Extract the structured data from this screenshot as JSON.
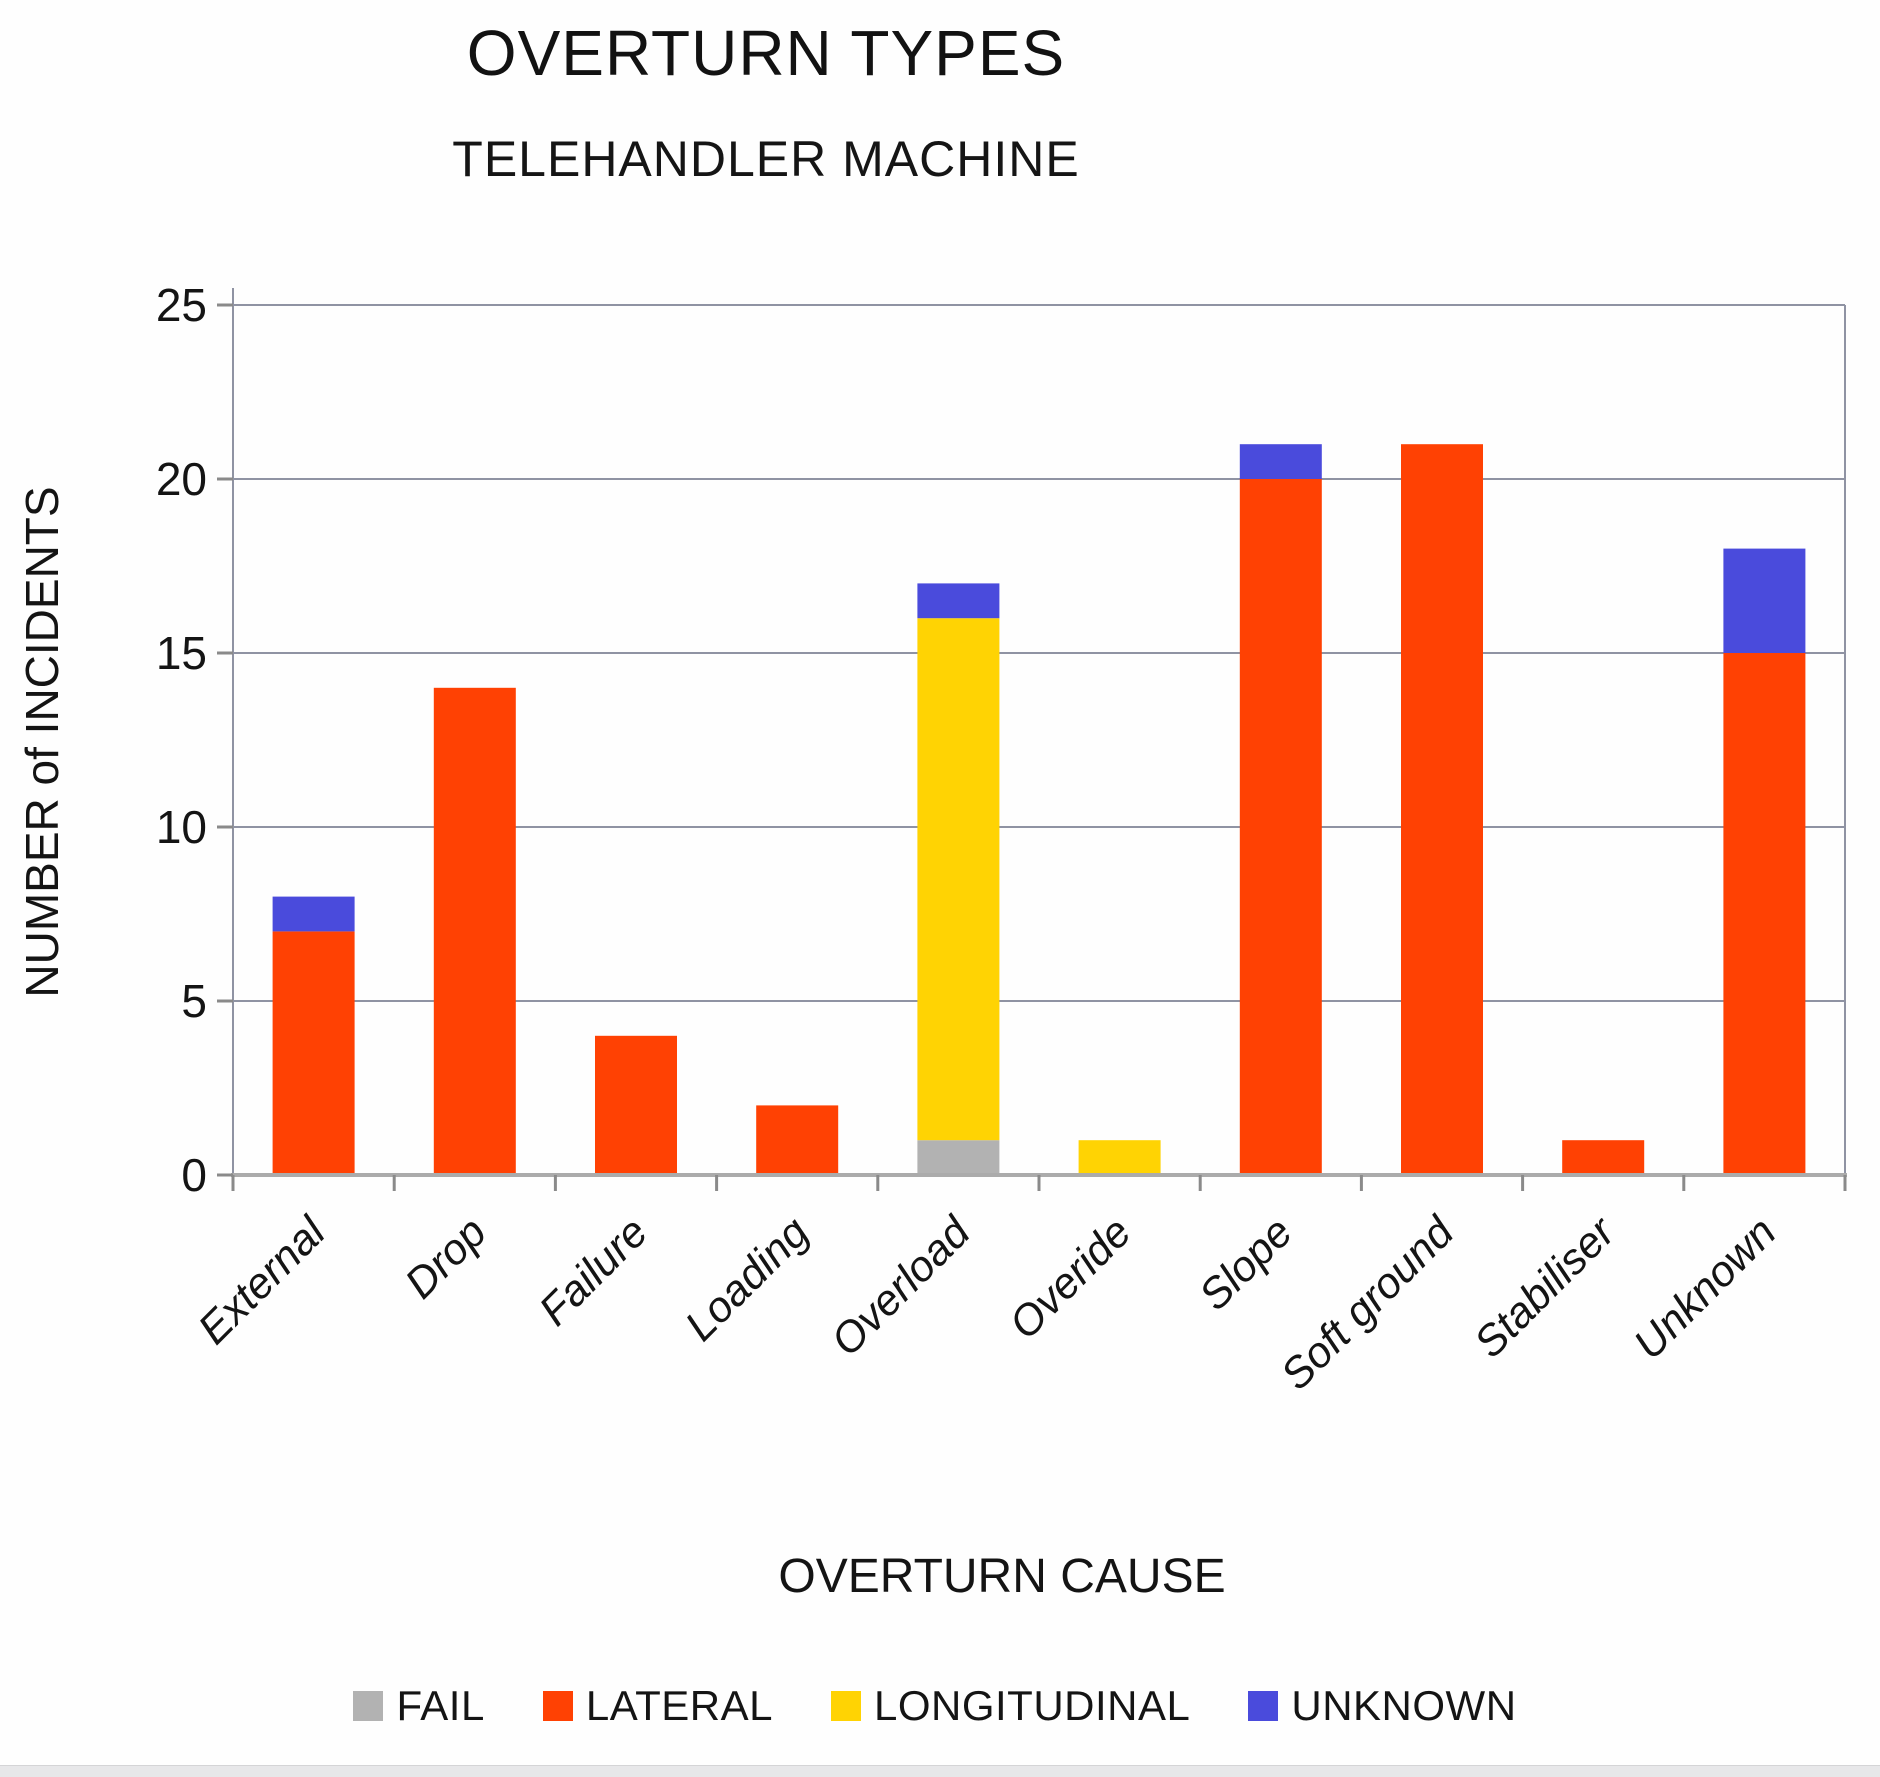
{
  "title": "OVERTURN TYPES",
  "subtitle": "TELEHANDLER MACHINE",
  "chart_data": {
    "type": "bar",
    "stacked": true,
    "title": "OVERTURN TYPES",
    "subtitle": "TELEHANDLER MACHINE",
    "xlabel": "OVERTURN CAUSE",
    "ylabel": "NUMBER of INCIDENTS",
    "categories": [
      "External",
      "Drop",
      "Failure",
      "Loading",
      "Overload",
      "Overide",
      "Slope",
      "Soft ground",
      "Stabiliser",
      "Unknown"
    ],
    "series": [
      {
        "name": "FAIL",
        "color": "#b2b2b2",
        "values": [
          0,
          0,
          0,
          0,
          1,
          0,
          0,
          0,
          0,
          0
        ]
      },
      {
        "name": "LATERAL",
        "color": "#ff4103",
        "values": [
          7,
          14,
          4,
          2,
          0,
          0,
          20,
          21,
          1,
          15
        ]
      },
      {
        "name": "LONGITUDINAL",
        "color": "#ffd303",
        "values": [
          0,
          0,
          0,
          0,
          15,
          1,
          0,
          0,
          0,
          0
        ]
      },
      {
        "name": "UNKNOWN",
        "color": "#4a4bdc",
        "values": [
          1,
          0,
          0,
          0,
          1,
          0,
          1,
          0,
          0,
          3
        ]
      }
    ],
    "totals": [
      8,
      14,
      4,
      2,
      17,
      1,
      21,
      21,
      1,
      18
    ],
    "ylim": [
      0,
      25
    ],
    "yticks": [
      0,
      5,
      10,
      15,
      20,
      25
    ],
    "grid": true,
    "legend_position": "bottom",
    "colors": {
      "grid": "#8f93a3",
      "axis": "#ababab",
      "text": "#141414"
    }
  }
}
